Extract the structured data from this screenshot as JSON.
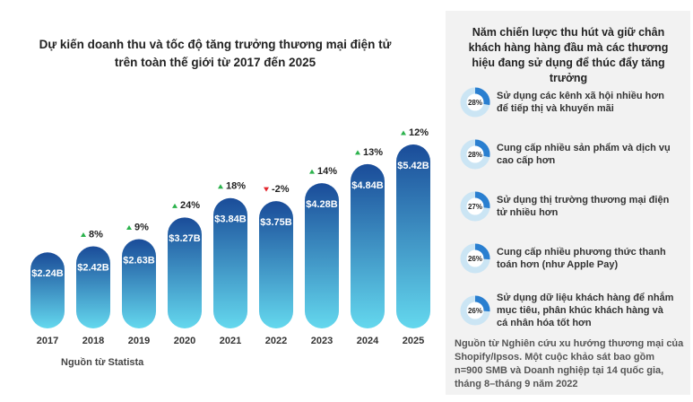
{
  "chart_data": {
    "type": "bar",
    "title": "Dự kiến doanh thu và tốc độ tăng trưởng thương mại điện tử trên toàn thế giới từ 2017 đến 2025",
    "categories": [
      "2017",
      "2018",
      "2019",
      "2020",
      "2021",
      "2022",
      "2023",
      "2024",
      "2025"
    ],
    "values": [
      2.24,
      2.42,
      2.63,
      3.27,
      3.84,
      3.75,
      4.28,
      4.84,
      5.42
    ],
    "value_labels": [
      "$2.24B",
      "$2.42B",
      "$2.63B",
      "$3.27B",
      "$3.84B",
      "$3.75B",
      "$4.28B",
      "$4.84B",
      "$5.42B"
    ],
    "growth": [
      null,
      8,
      9,
      24,
      18,
      -2,
      14,
      13,
      12
    ],
    "growth_labels": [
      null,
      "8%",
      "9%",
      "24%",
      "18%",
      "-2%",
      "14%",
      "13%",
      "12%"
    ],
    "colors": [
      "#1a4c99",
      "#64d8ee"
    ],
    "up_color": "#2bb24c",
    "down_color": "#e3262d",
    "source": "Nguồn từ Statista"
  },
  "panel": {
    "title": "Năm chiến lược thu hút và giữ chân khách hàng hàng đầu mà các thương hiệu đang sử dụng để thúc đẩy tăng trưởng",
    "items": [
      {
        "value": 28,
        "label": "28%",
        "text": "Sử dụng các kênh xã hội nhiều hơn để tiếp thị và khuyến mãi"
      },
      {
        "value": 28,
        "label": "28%",
        "text": "Cung cấp nhiều sản phẩm và dịch vụ cao cấp hơn"
      },
      {
        "value": 27,
        "label": "27%",
        "text": "Sử dụng thị trường thương mại điện tử nhiều hơn"
      },
      {
        "value": 26,
        "label": "26%",
        "text": "Cung cấp nhiều phương thức thanh toán hơn (như Apple Pay)"
      },
      {
        "value": 26,
        "label": "26%",
        "text": "Sử dụng dữ liệu khách hàng để nhắm mục tiêu, phân khúc khách hàng và cá nhân hóa tốt hơn"
      }
    ],
    "ring_color": "#cbe5f4",
    "arc_color": "#2a7fd0",
    "source": "Nguồn từ Nghiên cứu xu hướng thương mại của Shopify/Ipsos. Một cuộc khảo sát bao gồm n=900 SMB và Doanh nghiệp tại 14 quốc gia, tháng 8–tháng 9 năm 2022"
  }
}
